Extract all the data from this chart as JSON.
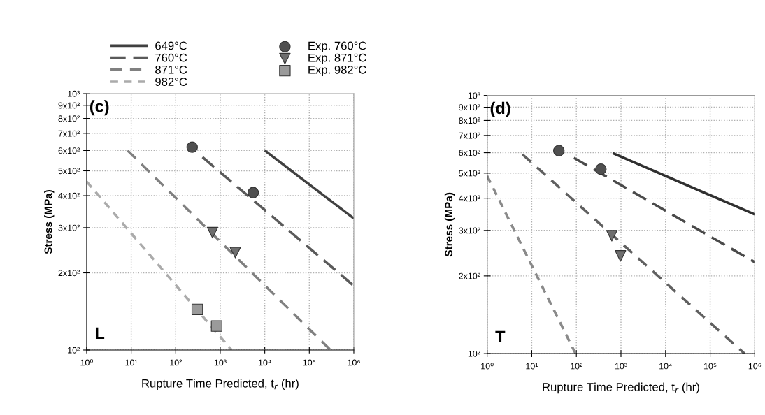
{
  "chart_data": [
    {
      "type": "line",
      "xlabel": "Rupture Time Predicted, t$_{r}$ (hr)",
      "ylabel": "Stress (MPa)",
      "log": "xy",
      "grid": true,
      "legend": "top",
      "xlim": [
        1,
        1000000
      ],
      "ylim": [
        100,
        1000
      ],
      "xticks": [
        {
          "value": 1,
          "label": "10⁰"
        },
        {
          "value": 10,
          "label": "10¹"
        },
        {
          "value": 100,
          "label": "10²"
        },
        {
          "value": 1000,
          "label": "10³"
        },
        {
          "value": 10000,
          "label": "10⁴"
        },
        {
          "value": 100000,
          "label": "10⁵"
        },
        {
          "value": 1000000,
          "label": "10⁶"
        }
      ],
      "yticks": [
        {
          "value": 100,
          "label": "10²"
        },
        {
          "value": 200,
          "label": "2x10²"
        },
        {
          "value": 300,
          "label": "3x10²"
        },
        {
          "value": 400,
          "label": "4x10²"
        },
        {
          "value": 500,
          "label": "5x10²"
        },
        {
          "value": 600,
          "label": "6x10²"
        },
        {
          "value": 700,
          "label": "7x10²"
        },
        {
          "value": 800,
          "label": "8x10²"
        },
        {
          "value": 900,
          "label": "9x10²"
        },
        {
          "value": 1000,
          "label": "10³"
        }
      ],
      "annotations": [
        "(c)",
        "L"
      ],
      "series": [
        {
          "name": "649°C",
          "type": "line",
          "line_style": "solid",
          "color": "#404040",
          "x": [
            10000,
            1000000
          ],
          "values": [
            600,
            326
          ]
        },
        {
          "name": "760°C",
          "type": "line",
          "line_style": "dashed",
          "color": "#5a5a5a",
          "x": [
            400,
            1000000
          ],
          "values": [
            565,
            178
          ]
        },
        {
          "name": "871°C",
          "type": "line",
          "line_style": "dashed",
          "color": "#808080",
          "x": [
            8.3,
            300000
          ],
          "values": [
            600,
            100
          ]
        },
        {
          "name": "982°C",
          "type": "line",
          "line_style": "dashed",
          "color": "#ababab",
          "x": [
            1,
            1800
          ],
          "values": [
            454,
            100
          ]
        },
        {
          "name": "Exp. 760°C",
          "type": "scatter",
          "marker": "circle",
          "color": "#505050",
          "x": [
            234,
            5500
          ],
          "values": [
            618,
            411
          ]
        },
        {
          "name": "Exp. 871°C",
          "type": "scatter",
          "marker": "triangle",
          "color": "#6e6e6e",
          "x": [
            670,
            2180
          ],
          "values": [
            287,
            240
          ]
        },
        {
          "name": "Exp. 982°C",
          "type": "scatter",
          "marker": "square",
          "color": "#9a9a9a",
          "x": [
            305,
            830
          ],
          "values": [
            144,
            124
          ]
        }
      ]
    },
    {
      "type": "line",
      "xlabel": "Rupture Time Predicted, t$_{r}$ (hr)",
      "ylabel": "Stress (MPa)",
      "log": "xy",
      "grid": true,
      "xlim": [
        1,
        1000000
      ],
      "ylim": [
        100,
        1000
      ],
      "xticks": [
        {
          "value": 1,
          "label": "10⁰"
        },
        {
          "value": 10,
          "label": "10¹"
        },
        {
          "value": 100,
          "label": "10²"
        },
        {
          "value": 1000,
          "label": "10³"
        },
        {
          "value": 10000,
          "label": "10⁴"
        },
        {
          "value": 100000,
          "label": "10⁵"
        },
        {
          "value": 1000000,
          "label": "10⁶"
        }
      ],
      "yticks": [
        {
          "value": 100,
          "label": "10²"
        },
        {
          "value": 200,
          "label": "2x10²"
        },
        {
          "value": 300,
          "label": "3x10²"
        },
        {
          "value": 400,
          "label": "4x10²"
        },
        {
          "value": 500,
          "label": "5x10²"
        },
        {
          "value": 600,
          "label": "6x10²"
        },
        {
          "value": 700,
          "label": "7x10²"
        },
        {
          "value": 800,
          "label": "8x10²"
        },
        {
          "value": 900,
          "label": "9x10²"
        },
        {
          "value": 1000,
          "label": "10³"
        }
      ],
      "annotations": [
        "(d)",
        "T"
      ],
      "series": [
        {
          "type": "line",
          "line_style": "solid",
          "color": "#303030",
          "x": [
            650,
            1000000
          ],
          "values": [
            598,
            346
          ]
        },
        {
          "type": "line",
          "line_style": "dashed",
          "color": "#4a4a4a",
          "x": [
            88,
            1000000
          ],
          "values": [
            573,
            226
          ]
        },
        {
          "type": "line",
          "line_style": "dashed",
          "color": "#606060",
          "x": [
            6.2,
            590000
          ],
          "values": [
            591,
            100
          ]
        },
        {
          "type": "line",
          "line_style": "dashed",
          "color": "#8a8a8a",
          "x": [
            1,
            96
          ],
          "values": [
            488,
            100
          ]
        },
        {
          "type": "scatter",
          "marker": "circle",
          "color": "#505050",
          "x": [
            40.5,
            355
          ],
          "values": [
            611,
            518
          ]
        },
        {
          "type": "scatter",
          "marker": "triangle",
          "color": "#6e6e6e",
          "x": [
            624,
            975
          ],
          "values": [
            286,
            239
          ]
        }
      ]
    }
  ]
}
